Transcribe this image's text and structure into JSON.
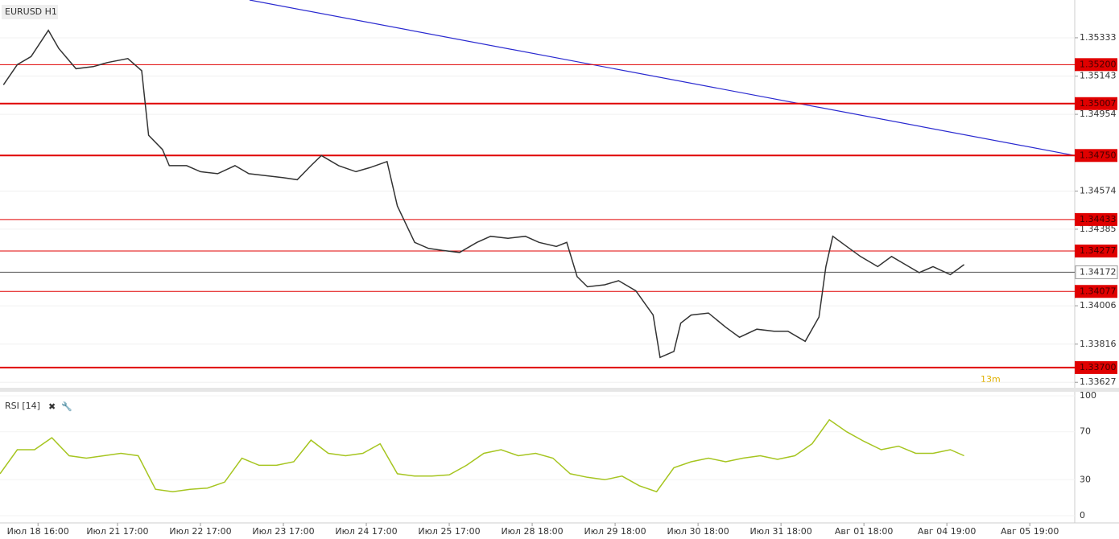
{
  "chart_data": [
    {
      "type": "line",
      "title": "EURUSD H1",
      "xlim": [
        0,
        311
      ],
      "xticks": [
        {
          "value": 11,
          "label": "Июл 18 16:00"
        },
        {
          "value": 34,
          "label": "Июл 21 17:00"
        },
        {
          "value": 58,
          "label": "Июл 22 17:00"
        },
        {
          "value": 82,
          "label": "Июл 23 17:00"
        },
        {
          "value": 106,
          "label": "Июл 24 17:00"
        },
        {
          "value": 130,
          "label": "Июл 25 17:00"
        },
        {
          "value": 154,
          "label": "Июл 28 18:00"
        },
        {
          "value": 178,
          "label": "Июл 29 18:00"
        },
        {
          "value": 202,
          "label": "Июл 30 18:00"
        },
        {
          "value": 226,
          "label": "Июл 31 18:00"
        },
        {
          "value": 250,
          "label": "Авг 01 18:00"
        },
        {
          "value": 274,
          "label": "Авг 04 19:00"
        },
        {
          "value": 298,
          "label": "Авг 05 19:00"
        }
      ],
      "ylim": [
        1.336,
        1.3552
      ],
      "yticks": [
        1.35333,
        1.35143,
        1.34954,
        1.34574,
        1.34385,
        1.34006,
        1.33816,
        1.33627
      ],
      "x": [
        1,
        5,
        9,
        14,
        17,
        22,
        27,
        31,
        37,
        41,
        43,
        47,
        49,
        54,
        58,
        63,
        68,
        72,
        77,
        82,
        86,
        90,
        93,
        98,
        103,
        107,
        112,
        115,
        120,
        124,
        128,
        133,
        138,
        142,
        147,
        152,
        156,
        161,
        164,
        167,
        170,
        175,
        179,
        184,
        189,
        191,
        195,
        197,
        200,
        205,
        210,
        214,
        219,
        224,
        228,
        233,
        237,
        239,
        241,
        245,
        249,
        254,
        258,
        261,
        266,
        270,
        275,
        279
      ],
      "series": [
        {
          "color": "#333333",
          "values": [
            1.351,
            1.352,
            1.3524,
            1.3537,
            1.3528,
            1.3518,
            1.3519,
            1.3521,
            1.3523,
            1.3517,
            1.3485,
            1.3478,
            1.347,
            1.347,
            1.3467,
            1.3466,
            1.347,
            1.3466,
            1.3465,
            1.3464,
            1.3463,
            1.347,
            1.3475,
            1.347,
            1.3467,
            1.3469,
            1.3472,
            1.345,
            1.3432,
            1.3429,
            1.3428,
            1.3427,
            1.3432,
            1.3435,
            1.3434,
            1.3435,
            1.3432,
            1.343,
            1.3432,
            1.3415,
            1.341,
            1.3411,
            1.3413,
            1.3408,
            1.3396,
            1.3375,
            1.3378,
            1.3392,
            1.3396,
            1.3397,
            1.339,
            1.3385,
            1.3389,
            1.3388,
            1.3388,
            1.3383,
            1.3395,
            1.342,
            1.3435,
            1.343,
            1.3425,
            1.342,
            1.3425,
            1.3422,
            1.3417,
            1.342,
            1.3416,
            1.3421
          ]
        }
      ],
      "levels": [
        {
          "value": 1.352,
          "label": "1.35200",
          "color": "#e00000",
          "thick": false
        },
        {
          "value": 1.35007,
          "label": "1.35007",
          "color": "#e00000",
          "thick": true
        },
        {
          "value": 1.3475,
          "label": "1.34750",
          "color": "#e00000",
          "thick": true
        },
        {
          "value": 1.34433,
          "label": "1.34433",
          "color": "#e00000",
          "thick": false
        },
        {
          "value": 1.34277,
          "label": "1.34277",
          "color": "#e00000",
          "thick": false
        },
        {
          "value": 1.34077,
          "label": "1.34077",
          "color": "#e00000",
          "thick": false
        },
        {
          "value": 1.337,
          "label": "1.33700",
          "color": "#e00000",
          "thick": true
        }
      ],
      "current_price": 1.34172,
      "trendline": {
        "values": [
          1.3552,
          1.3475
        ],
        "color": "#2a2ad0"
      },
      "annotation": "13m"
    },
    {
      "type": "line",
      "title": "RSI [14]",
      "ylim": [
        0,
        100
      ],
      "yticks": [
        0,
        30,
        70,
        100
      ],
      "x": [
        0,
        5,
        10,
        15,
        20,
        25,
        30,
        35,
        40,
        45,
        50,
        55,
        60,
        65,
        70,
        75,
        80,
        85,
        90,
        95,
        100,
        105,
        110,
        115,
        120,
        125,
        130,
        135,
        140,
        145,
        150,
        155,
        160,
        165,
        170,
        175,
        180,
        185,
        190,
        195,
        200,
        205,
        210,
        215,
        220,
        225,
        230,
        235,
        240,
        245,
        250,
        255,
        260,
        265,
        270,
        275,
        279
      ],
      "series": [
        {
          "color": "#a6c520",
          "values": [
            35,
            55,
            55,
            65,
            50,
            48,
            50,
            52,
            50,
            22,
            20,
            22,
            23,
            28,
            48,
            42,
            42,
            45,
            63,
            52,
            50,
            52,
            60,
            35,
            33,
            33,
            34,
            42,
            52,
            55,
            50,
            52,
            48,
            35,
            32,
            30,
            33,
            25,
            20,
            40,
            45,
            48,
            45,
            48,
            50,
            47,
            50,
            60,
            80,
            70,
            62,
            55,
            58,
            52,
            52,
            55,
            50
          ]
        }
      ]
    }
  ]
}
